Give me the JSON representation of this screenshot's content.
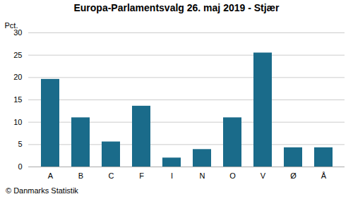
{
  "chart_data": {
    "type": "bar",
    "title": "Europa-Parlamentsvalg 26. maj 2019 - Stjær",
    "categories": [
      "A",
      "B",
      "C",
      "F",
      "I",
      "N",
      "O",
      "V",
      "Ø",
      "Å"
    ],
    "values": [
      19.6,
      11.0,
      5.6,
      13.6,
      2.0,
      3.9,
      11.0,
      25.5,
      4.3,
      4.3
    ],
    "color": "#1a6b8a",
    "ylabel": "Pct.",
    "ylim": [
      0,
      30
    ],
    "yticks": [
      0,
      5,
      10,
      15,
      20,
      25,
      30
    ],
    "grid": true,
    "caption": "© Danmarks Statistik"
  }
}
